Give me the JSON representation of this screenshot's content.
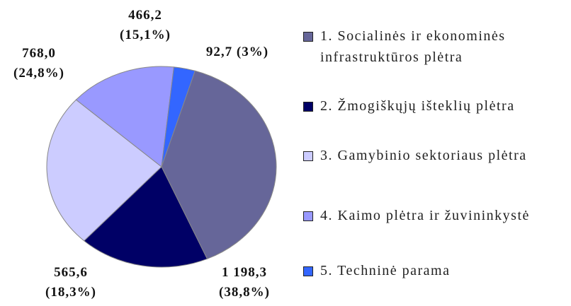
{
  "chart_data": {
    "type": "pie",
    "categories": [
      "1. Socialinės ir ekonominės infrastruktūros plėtra",
      "2. Žmogiškųjų išteklių plėtra",
      "3. Gamybinio sektoriaus plėtra",
      "4. Kaimo plėtra ir žuvininkystė",
      "5. Techninė parama"
    ],
    "values": [
      1198.3,
      565.6,
      768.0,
      466.2,
      92.7
    ],
    "value_labels": [
      "1 198,3\n(38,8%)",
      "565,6\n(18,3%)",
      "768,0\n(24,8%)",
      "466,2\n(15,1%)",
      "92,7 (3%)"
    ],
    "colors": [
      "#666699",
      "#000066",
      "#ccccff",
      "#9999ff",
      "#3366ff"
    ],
    "legend": "right"
  }
}
